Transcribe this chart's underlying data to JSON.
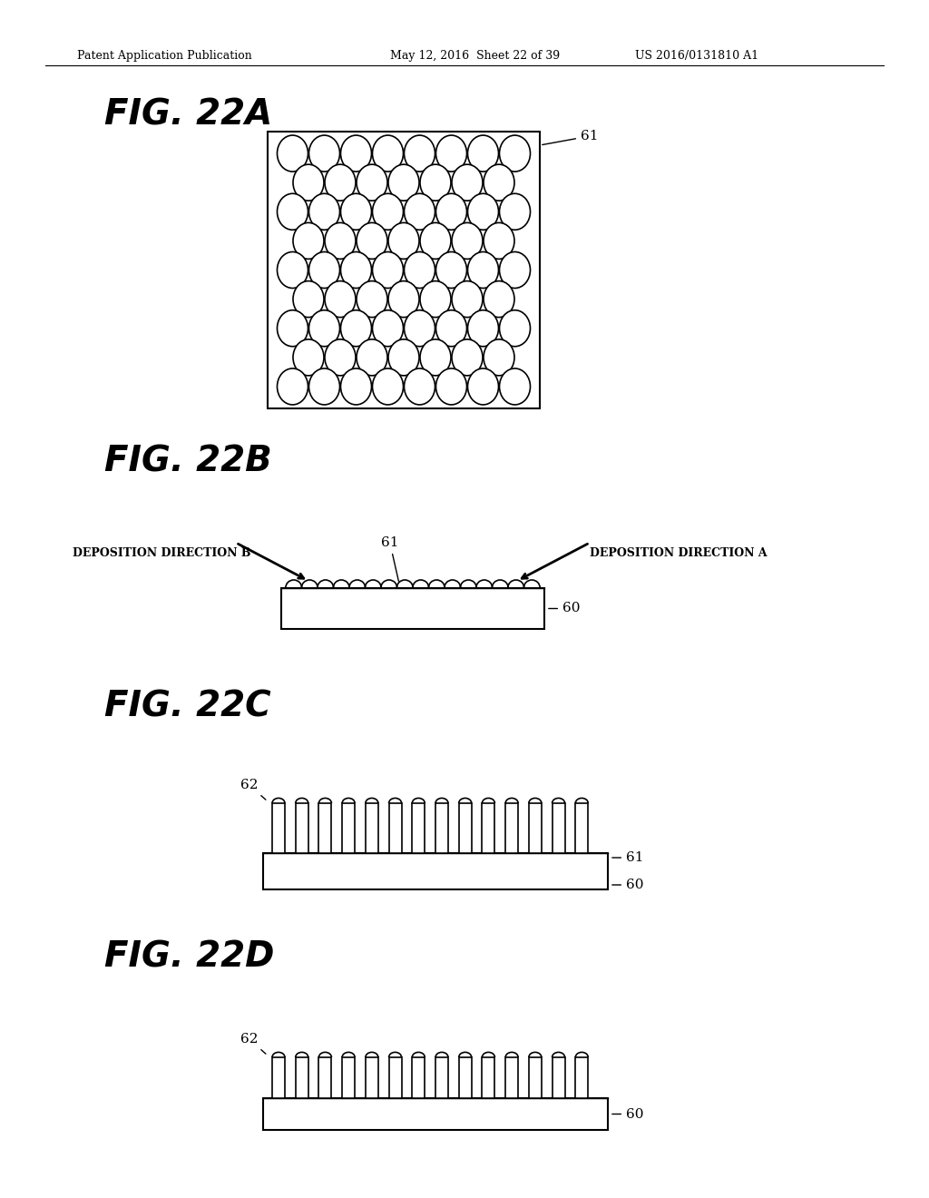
{
  "bg_color": "#ffffff",
  "header_text": "Patent Application Publication",
  "header_date": "May 12, 2016  Sheet 22 of 39",
  "header_patent": "US 2016/0131810 A1",
  "fig_labels": [
    "FIG. 22A",
    "FIG. 22B",
    "FIG. 22C",
    "FIG. 22D"
  ],
  "label_61": "61",
  "label_60": "60",
  "label_62": "62",
  "dep_dir_a": "DEPOSITION DIRECTION A",
  "dep_dir_b": "DEPOSITION DIRECTION B"
}
